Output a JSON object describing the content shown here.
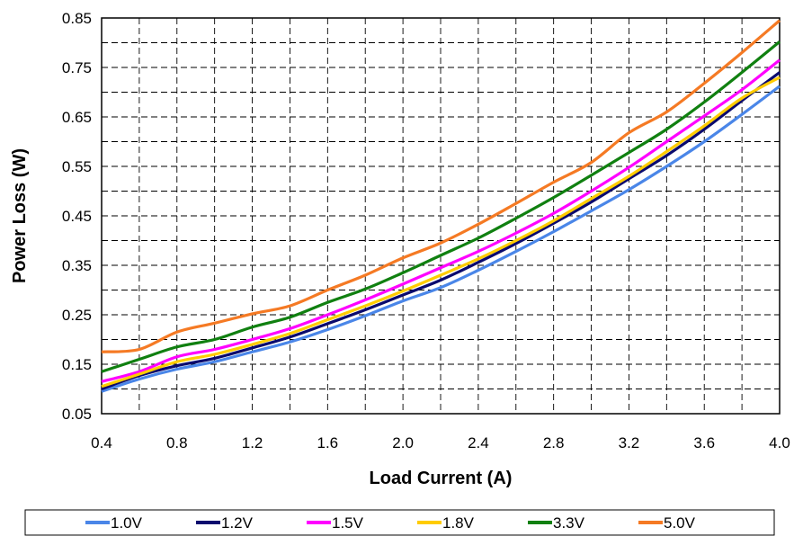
{
  "chart_data": {
    "type": "line",
    "xlabel": "Load Current (A)",
    "ylabel": "Power Loss (W)",
    "xlim": [
      0.4,
      4.0
    ],
    "ylim": [
      0.05,
      0.85
    ],
    "xticks": [
      "0.4",
      "0.8",
      "1.2",
      "1.6",
      "2.0",
      "2.4",
      "2.8",
      "3.2",
      "3.6",
      "4.0"
    ],
    "yticks": [
      "0.05",
      "0.15",
      "0.25",
      "0.35",
      "0.45",
      "0.55",
      "0.65",
      "0.75",
      "0.85"
    ],
    "grid": true,
    "legend_position": "bottom",
    "x": [
      0.4,
      0.6,
      0.8,
      1.0,
      1.2,
      1.4,
      1.6,
      1.8,
      2.0,
      2.2,
      2.4,
      2.6,
      2.8,
      3.0,
      3.2,
      3.4,
      3.6,
      3.8,
      4.0
    ],
    "series": [
      {
        "name": "1.0V",
        "color": "#4a86e8",
        "values": [
          0.095,
          0.12,
          0.14,
          0.155,
          0.175,
          0.195,
          0.22,
          0.248,
          0.278,
          0.305,
          0.34,
          0.378,
          0.418,
          0.46,
          0.503,
          0.55,
          0.6,
          0.655,
          0.712
        ]
      },
      {
        "name": "1.2V",
        "color": "#0a0a6e",
        "values": [
          0.1,
          0.127,
          0.147,
          0.162,
          0.183,
          0.205,
          0.232,
          0.26,
          0.29,
          0.32,
          0.356,
          0.394,
          0.435,
          0.478,
          0.525,
          0.572,
          0.625,
          0.683,
          0.74
        ]
      },
      {
        "name": "1.5V",
        "color": "#ff00ff",
        "values": [
          0.115,
          0.135,
          0.165,
          0.18,
          0.2,
          0.222,
          0.25,
          0.28,
          0.312,
          0.345,
          0.378,
          0.415,
          0.455,
          0.5,
          0.548,
          0.6,
          0.652,
          0.705,
          0.765
        ]
      },
      {
        "name": "1.8V",
        "color": "#ffcc00",
        "values": [
          0.105,
          0.13,
          0.155,
          0.17,
          0.19,
          0.212,
          0.24,
          0.268,
          0.298,
          0.33,
          0.363,
          0.4,
          0.44,
          0.485,
          0.53,
          0.58,
          0.632,
          0.688,
          0.73
        ]
      },
      {
        "name": "3.3V",
        "color": "#108010",
        "values": [
          0.135,
          0.16,
          0.185,
          0.2,
          0.225,
          0.245,
          0.275,
          0.302,
          0.335,
          0.37,
          0.405,
          0.445,
          0.487,
          0.532,
          0.578,
          0.625,
          0.68,
          0.74,
          0.802
        ]
      },
      {
        "name": "5.0V",
        "color": "#f57a24",
        "values": [
          0.175,
          0.18,
          0.215,
          0.233,
          0.252,
          0.268,
          0.3,
          0.33,
          0.365,
          0.395,
          0.433,
          0.475,
          0.518,
          0.558,
          0.618,
          0.66,
          0.718,
          0.78,
          0.845
        ]
      }
    ]
  }
}
